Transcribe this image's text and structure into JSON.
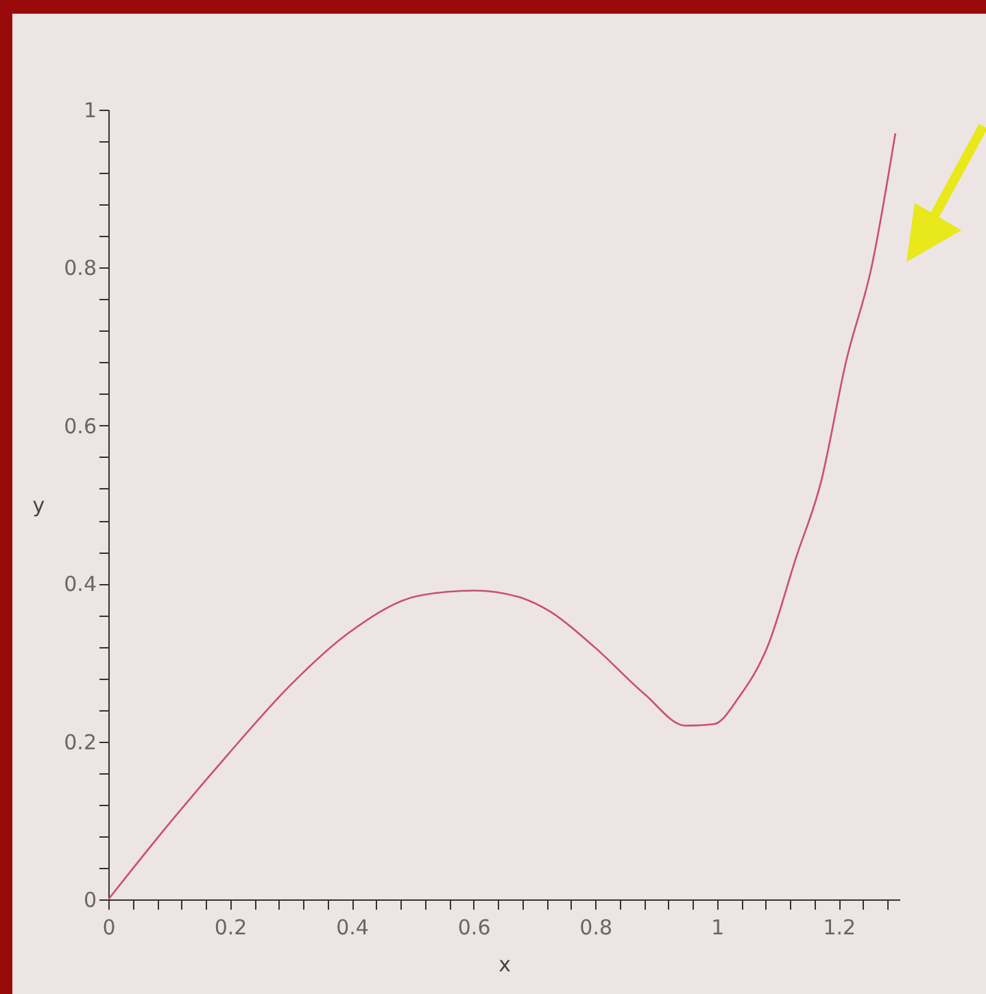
{
  "chart_data": {
    "type": "line",
    "xlabel": "x",
    "ylabel": "y",
    "x": [
      0,
      0.083,
      0.197,
      0.3,
      0.394,
      0.513,
      0.601,
      0.674,
      0.725,
      0.798,
      0.881,
      0.948,
      0.995,
      1.036,
      1.083,
      1.13,
      1.171,
      1.212,
      1.254,
      1.293
    ],
    "series": [
      {
        "color": "#c8506e",
        "values": [
          0,
          0.08,
          0.184,
          0.272,
          0.337,
          0.385,
          0.391,
          0.383,
          0.365,
          0.32,
          0.26,
          0.22,
          0.222,
          0.256,
          0.32,
          0.433,
          0.529,
          0.681,
          0.801,
          0.97
        ]
      }
    ],
    "xlim": [
      0,
      1.3
    ],
    "ylim": [
      0,
      1
    ],
    "xticks": [
      0,
      {
        "value": 0.04,
        "label": null
      },
      {
        "value": 0.08,
        "label": null
      },
      {
        "value": 0.12,
        "label": null
      },
      {
        "value": 0.16,
        "label": null
      },
      0.2,
      {
        "value": 0.24,
        "label": null
      },
      {
        "value": 0.28,
        "label": null
      },
      {
        "value": 0.32,
        "label": null
      },
      {
        "value": 0.36,
        "label": null
      },
      0.4,
      {
        "value": 0.44,
        "label": null
      },
      {
        "value": 0.48,
        "label": null
      },
      {
        "value": 0.52,
        "label": null
      },
      {
        "value": 0.56,
        "label": null
      },
      0.6,
      {
        "value": 0.64,
        "label": null
      },
      {
        "value": 0.68,
        "label": null
      },
      {
        "value": 0.72,
        "label": null
      },
      {
        "value": 0.76,
        "label": null
      },
      0.8,
      {
        "value": 0.84,
        "label": null
      },
      {
        "value": 0.88,
        "label": null
      },
      {
        "value": 0.92,
        "label": null
      },
      {
        "value": 0.96,
        "label": null
      },
      1,
      {
        "value": 1.04,
        "label": null
      },
      {
        "value": 1.08,
        "label": null
      },
      {
        "value": 1.12,
        "label": null
      },
      {
        "value": 1.16,
        "label": null
      },
      1.2,
      {
        "value": 1.24,
        "label": null
      },
      {
        "value": 1.28,
        "label": null
      }
    ],
    "yticks": [
      0,
      {
        "value": 0.04,
        "label": null
      },
      {
        "value": 0.08,
        "label": null
      },
      {
        "value": 0.12,
        "label": null
      },
      {
        "value": 0.16,
        "label": null
      },
      0.2,
      {
        "value": 0.24,
        "label": null
      },
      {
        "value": 0.28,
        "label": null
      },
      {
        "value": 0.32,
        "label": null
      },
      {
        "value": 0.36,
        "label": null
      },
      0.4,
      {
        "value": 0.44,
        "label": null
      },
      {
        "value": 0.48,
        "label": null
      },
      {
        "value": 0.52,
        "label": null
      },
      {
        "value": 0.56,
        "label": null
      },
      0.6,
      {
        "value": 0.64,
        "label": null
      },
      {
        "value": 0.68,
        "label": null
      },
      {
        "value": 0.72,
        "label": null
      },
      {
        "value": 0.76,
        "label": null
      },
      0.8,
      {
        "value": 0.84,
        "label": null
      },
      {
        "value": 0.88,
        "label": null
      },
      {
        "value": 0.92,
        "label": null
      },
      {
        "value": 0.96,
        "label": null
      },
      1
    ],
    "grid": false
  }
}
